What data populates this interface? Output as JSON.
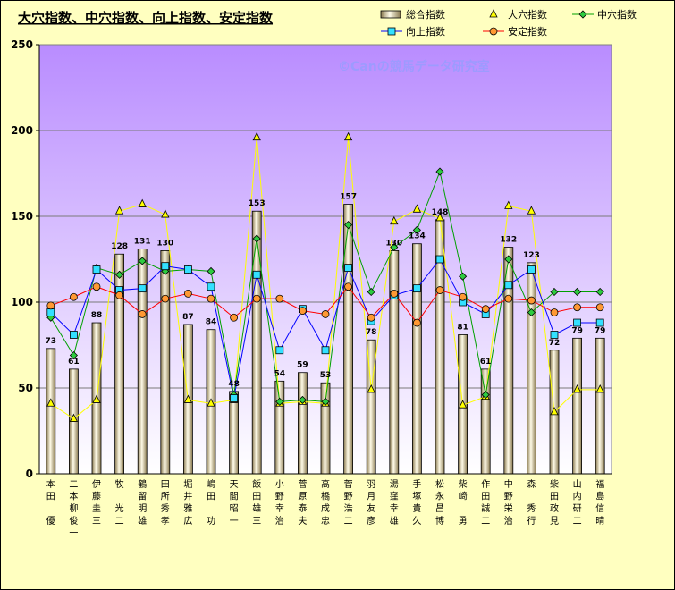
{
  "chart_data": {
    "type": "bar",
    "title": "大穴指数、中穴指数、向上指数、安定指数",
    "watermark": "©Canの競馬データ研究室",
    "ylim": [
      0,
      250
    ],
    "yticks": [
      "0",
      "50",
      "100",
      "150",
      "200",
      "250"
    ],
    "grid": "horizontal",
    "legend_position": "top-right",
    "categories": [
      [
        "本",
        "田",
        "",
        "優"
      ],
      [
        "二",
        "本",
        "柳",
        "俊",
        "一"
      ],
      [
        "伊",
        "藤",
        "圭",
        "三"
      ],
      [
        "牧",
        "",
        "光",
        "二"
      ],
      [
        "鶴",
        "留",
        "明",
        "雄"
      ],
      [
        "田",
        "所",
        "秀",
        "孝"
      ],
      [
        "堀",
        "井",
        "雅",
        "広"
      ],
      [
        "嶋",
        "田",
        "",
        "功"
      ],
      [
        "天",
        "間",
        "昭",
        "一"
      ],
      [
        "飯",
        "田",
        "雄",
        "三"
      ],
      [
        "小",
        "野",
        "幸",
        "治"
      ],
      [
        "菅",
        "原",
        "泰",
        "夫"
      ],
      [
        "高",
        "橋",
        "成",
        "忠"
      ],
      [
        "菅",
        "野",
        "浩",
        "二"
      ],
      [
        "羽",
        "月",
        "友",
        "彦"
      ],
      [
        "湯",
        "窪",
        "幸",
        "雄"
      ],
      [
        "手",
        "塚",
        "貴",
        "久"
      ],
      [
        "松",
        "永",
        "昌",
        "博"
      ],
      [
        "柴",
        "崎",
        "",
        "勇"
      ],
      [
        "作",
        "田",
        "誠",
        "二"
      ],
      [
        "中",
        "野",
        "栄",
        "治"
      ],
      [
        "森",
        "",
        "秀",
        "行"
      ],
      [
        "柴",
        "田",
        "政",
        "見"
      ],
      [
        "山",
        "内",
        "研",
        "二"
      ],
      [
        "福",
        "島",
        "信",
        "晴"
      ]
    ],
    "series": [
      {
        "name": "総合指数",
        "kind": "bar",
        "color": "#d8c890",
        "values": [
          73,
          61,
          88,
          128,
          131,
          130,
          87,
          84,
          48,
          153,
          54,
          59,
          53,
          157,
          78,
          130,
          134,
          148,
          81,
          61,
          132,
          123,
          72,
          79,
          79
        ]
      },
      {
        "name": "大穴指数",
        "kind": "line",
        "color": "#ffff00",
        "marker": "triangle",
        "values": [
          41,
          32,
          43,
          153,
          157,
          151,
          43,
          41,
          43,
          196,
          41,
          42,
          41,
          196,
          49,
          147,
          154,
          149,
          40,
          45,
          156,
          153,
          36,
          49,
          49
        ]
      },
      {
        "name": "中穴指数",
        "kind": "line",
        "color": "#00a000",
        "marker": "diamond",
        "values": [
          91,
          69,
          120,
          116,
          124,
          118,
          119,
          118,
          46,
          137,
          42,
          43,
          42,
          145,
          106,
          132,
          142,
          176,
          115,
          46,
          125,
          94,
          106,
          106,
          106
        ]
      },
      {
        "name": "向上指数",
        "kind": "line",
        "color": "#0000ff",
        "marker": "square",
        "values": [
          94,
          81,
          119,
          107,
          108,
          121,
          119,
          109,
          44,
          116,
          72,
          96,
          72,
          120,
          89,
          104,
          108,
          125,
          100,
          93,
          110,
          119,
          81,
          88,
          88
        ]
      },
      {
        "name": "安定指数",
        "kind": "line",
        "color": "#ff0000",
        "marker": "circle",
        "values": [
          98,
          103,
          109,
          104,
          93,
          102,
          105,
          102,
          91,
          102,
          102,
          95,
          93,
          109,
          91,
          105,
          88,
          107,
          103,
          96,
          102,
          101,
          94,
          97,
          97
        ]
      }
    ]
  }
}
